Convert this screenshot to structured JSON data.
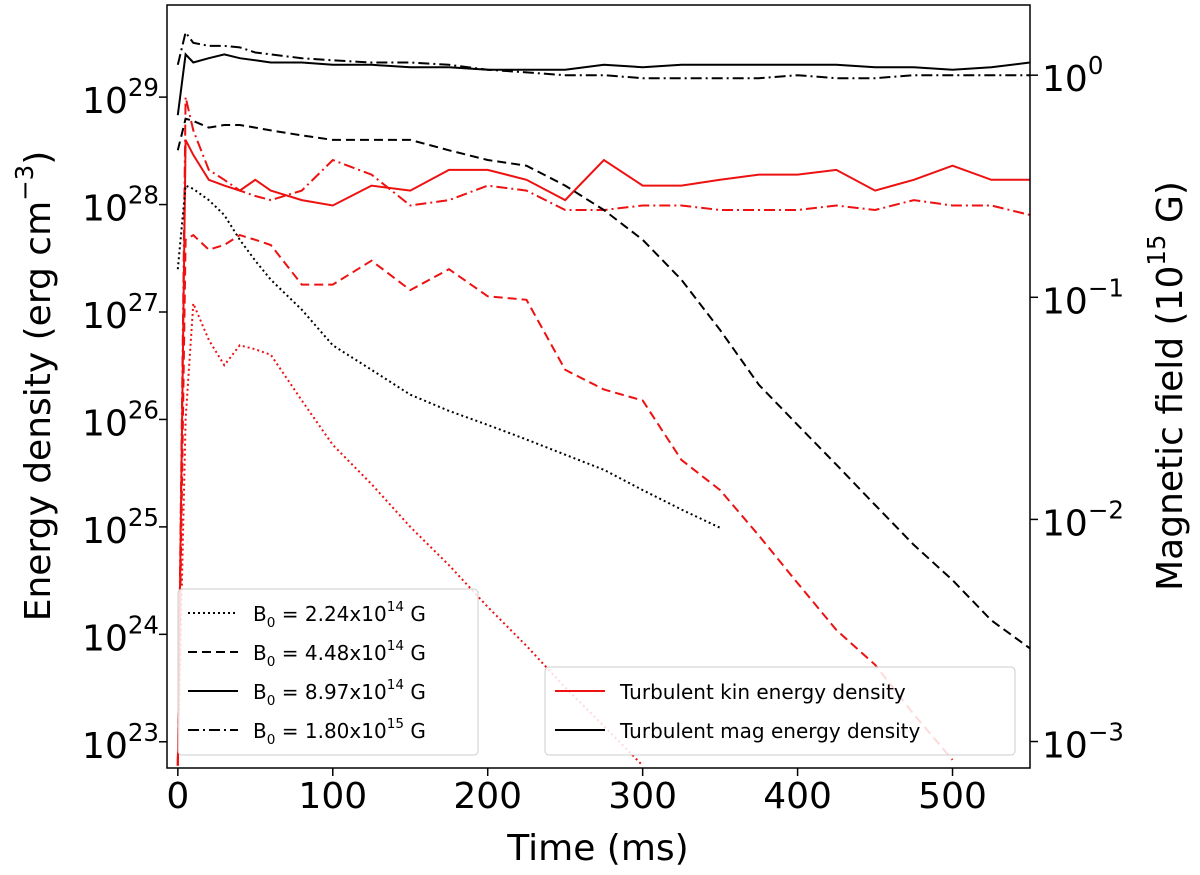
{
  "chart_data": {
    "type": "line",
    "xlabel": "Time (ms)",
    "ylabel": "Energy density (erg cm^−3)",
    "y2label": "Magnetic field (10^15 G)",
    "xlim": [
      -7,
      550
    ],
    "xticks": [
      0,
      100,
      200,
      300,
      400,
      500
    ],
    "ylim": [
      5.7e+22,
      7.2e+29
    ],
    "ylog": true,
    "yticks": [
      {
        "value": 1e+23,
        "label": "10^23"
      },
      {
        "value": 1e+24,
        "label": "10^24"
      },
      {
        "value": 1e+25,
        "label": "10^25"
      },
      {
        "value": 1e+26,
        "label": "10^26"
      },
      {
        "value": 1e+27,
        "label": "10^27"
      },
      {
        "value": 1e+28,
        "label": "10^28"
      },
      {
        "value": 1e+29,
        "label": "10^29"
      }
    ],
    "y2lim": [
      0.00076,
      2.07
    ],
    "y2log": true,
    "y2ticks": [
      {
        "value": 0.001,
        "label": "10^−3"
      },
      {
        "value": 0.01,
        "label": "10^−2"
      },
      {
        "value": 0.1,
        "label": "10^−1"
      },
      {
        "value": 1,
        "label": "10^0"
      }
    ],
    "x": [
      0,
      5,
      10,
      20,
      30,
      40,
      50,
      60,
      80,
      100,
      125,
      150,
      175,
      200,
      225,
      250,
      275,
      300,
      325,
      350,
      375,
      400,
      425,
      450,
      475,
      500,
      525,
      550
    ],
    "legends": [
      {
        "loc": "lower left",
        "entries": [
          {
            "label": "B_0 = 2.24x10^14 G",
            "dash": "dotted"
          },
          {
            "label": "B_0 = 4.48x10^14 G",
            "dash": "dashed"
          },
          {
            "label": "B_0 = 8.97x10^14 G",
            "dash": "solid"
          },
          {
            "label": "B_0 = 1.80x10^15 G",
            "dash": "dashdot"
          }
        ]
      },
      {
        "loc": "lower right",
        "entries": [
          {
            "label": "Turbulent kin energy density",
            "color": "#ee1111"
          },
          {
            "label": "Turbulent mag energy density",
            "color": "#000000"
          }
        ]
      }
    ],
    "series": [
      {
        "color": "#ee1111",
        "dash": "dotted",
        "values": [
          6e+22,
          1e+26,
          1.2e+27,
          5.5e+26,
          3.2e+26,
          4.9e+26,
          4.5e+26,
          4e+26,
          1.5e+26,
          5.8e+25,
          2.5e+25,
          1e+25,
          4.4e+24,
          1.8e+24,
          7.8e+23,
          3.2e+23,
          1.4e+23,
          6e+22,
          null,
          null,
          null,
          null,
          null,
          null,
          null,
          null,
          null,
          null
        ]
      },
      {
        "color": "#ee1111",
        "dash": "dashed",
        "values": [
          6e+22,
          4.7e+27,
          5.2e+27,
          3.8e+27,
          4.2e+27,
          5.2e+27,
          4.7e+27,
          4.2e+27,
          1.8e+27,
          1.8e+27,
          3e+27,
          1.6e+27,
          2.5e+27,
          1.4e+27,
          1.3e+27,
          2.9e+26,
          1.9e+26,
          1.5e+26,
          4.2e+25,
          2.2e+25,
          8.3e+24,
          3e+24,
          1.1e+24,
          5.2e+23,
          1.8e+23,
          6.8e+22,
          null,
          null
        ]
      },
      {
        "color": "#ee1111",
        "dash": "solid",
        "values": [
          6e+22,
          4e+28,
          2.9e+28,
          1.7e+28,
          1.5e+28,
          1.35e+28,
          1.7e+28,
          1.35e+28,
          1.1e+28,
          9.8e+27,
          1.5e+28,
          1.35e+28,
          2.1e+28,
          2.1e+28,
          1.7e+28,
          1.1e+28,
          2.6e+28,
          1.5e+28,
          1.5e+28,
          1.7e+28,
          1.9e+28,
          1.9e+28,
          2.1e+28,
          1.35e+28,
          1.7e+28,
          2.3e+28,
          1.7e+28,
          1.7e+28
        ]
      },
      {
        "color": "#ee1111",
        "dash": "dashdot",
        "values": [
          6e+22,
          1e+29,
          4.9e+28,
          2.1e+28,
          1.7e+28,
          1.35e+28,
          1.2e+28,
          1.1e+28,
          1.35e+28,
          2.6e+28,
          1.9e+28,
          9.8e+27,
          1.1e+28,
          1.5e+28,
          1.35e+28,
          8.9e+27,
          8.9e+27,
          9.8e+27,
          9.8e+27,
          8.9e+27,
          8.9e+27,
          8.9e+27,
          9.8e+27,
          8.9e+27,
          1.1e+28,
          9.8e+27,
          9.8e+27,
          8e+27
        ]
      },
      {
        "color": "#000000",
        "dash": "dotted",
        "values": [
          2.5e+27,
          1.5e+28,
          1.4e+28,
          1.1e+28,
          8e+27,
          4.7e+27,
          3e+27,
          2e+27,
          1.05e+27,
          4.9e+26,
          2.9e+26,
          1.7e+26,
          1.2e+26,
          8.9e+25,
          6.5e+25,
          4.7e+25,
          3.4e+25,
          2.2e+25,
          1.45e+25,
          9.8e+24,
          null,
          null,
          null,
          null,
          null,
          null,
          null,
          null
        ]
      },
      {
        "color": "#000000",
        "dash": "dashed",
        "values": [
          3.2e+28,
          6.3e+28,
          6e+28,
          5.2e+28,
          5.5e+28,
          5.5e+28,
          5.2e+28,
          4.9e+28,
          4.4e+28,
          4e+28,
          4e+28,
          4e+28,
          3.2e+28,
          2.6e+28,
          2.3e+28,
          1.5e+28,
          8.9e+27,
          4.7e+27,
          2e+27,
          6.8e+26,
          2.1e+26,
          8.9e+25,
          3.8e+25,
          1.6e+25,
          6.8e+24,
          3.2e+24,
          1.35e+24,
          7.4e+23
        ]
      },
      {
        "color": "#000000",
        "dash": "solid",
        "values": [
          6.8e+28,
          2.5e+29,
          2.1e+29,
          2.3e+29,
          2.5e+29,
          2.3e+29,
          2.2e+29,
          2.1e+29,
          2.1e+29,
          2e+29,
          2e+29,
          1.9e+29,
          1.9e+29,
          1.8e+29,
          1.8e+29,
          1.8e+29,
          2e+29,
          1.9e+29,
          2e+29,
          2e+29,
          2e+29,
          2e+29,
          2e+29,
          1.9e+29,
          1.9e+29,
          1.8e+29,
          1.9e+29,
          2.1e+29
        ]
      },
      {
        "color": "#000000",
        "dash": "dashdot",
        "values": [
          2e+29,
          4e+29,
          3.2e+29,
          3e+29,
          3e+29,
          2.9e+29,
          2.6e+29,
          2.5e+29,
          2.3e+29,
          2.2e+29,
          2.1e+29,
          2.1e+29,
          2e+29,
          1.8e+29,
          1.7e+29,
          1.6e+29,
          1.6e+29,
          1.5e+29,
          1.5e+29,
          1.5e+29,
          1.5e+29,
          1.6e+29,
          1.5e+29,
          1.5e+29,
          1.6e+29,
          1.6e+29,
          1.6e+29,
          1.6e+29
        ]
      }
    ]
  }
}
